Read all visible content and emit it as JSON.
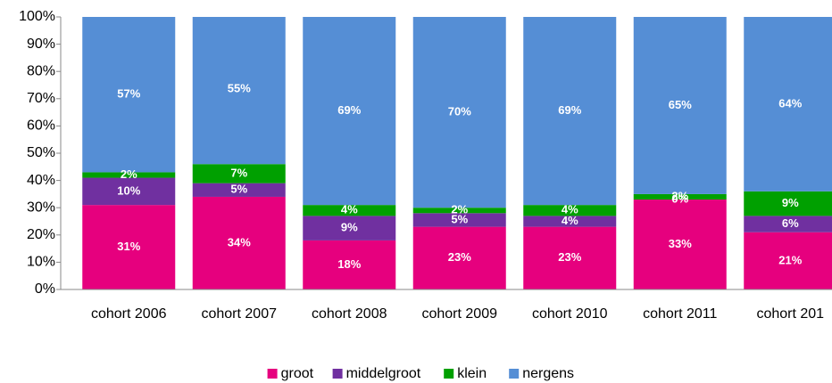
{
  "chart_data": {
    "type": "stacked_bar",
    "categories": [
      "cohort 2006",
      "cohort 2007",
      "cohort 2008",
      "cohort 2009",
      "cohort 2010",
      "cohort 2011",
      "cohort 201"
    ],
    "series": [
      {
        "name": "groot",
        "color": "#e6007e",
        "values": [
          31,
          34,
          18,
          23,
          23,
          33,
          21
        ],
        "value_labels": [
          "31%",
          "34%",
          "18%",
          "23%",
          "23%",
          "33%",
          "21%"
        ]
      },
      {
        "name": "middelgroot",
        "color": "#7030a0",
        "values": [
          10,
          5,
          9,
          5,
          4,
          0,
          6
        ],
        "value_labels": [
          "10%",
          "5%",
          "9%",
          "5%",
          "4%",
          "0%",
          "6%"
        ]
      },
      {
        "name": "klein",
        "color": "#00a000",
        "values": [
          2,
          7,
          4,
          2,
          4,
          2,
          9
        ],
        "value_labels": [
          "2%",
          "7%",
          "4%",
          "2%",
          "4%",
          "2%",
          "9%"
        ]
      },
      {
        "name": "nergens",
        "color": "#558ed5",
        "values": [
          57,
          55,
          69,
          70,
          69,
          65,
          64
        ],
        "value_labels": [
          "57%",
          "55%",
          "69%",
          "70%",
          "69%",
          "65%",
          "64%"
        ]
      }
    ],
    "ylim": [
      0,
      100
    ],
    "yticks": [
      {
        "value": 0,
        "label": "0%"
      },
      {
        "value": 10,
        "label": "10%"
      },
      {
        "value": 20,
        "label": "20%"
      },
      {
        "value": 30,
        "label": "30%"
      },
      {
        "value": 40,
        "label": "40%"
      },
      {
        "value": 50,
        "label": "50%"
      },
      {
        "value": 60,
        "label": "60%"
      },
      {
        "value": 70,
        "label": "70%"
      },
      {
        "value": 80,
        "label": "80%"
      },
      {
        "value": 90,
        "label": "90%"
      },
      {
        "value": 100,
        "label": "100%"
      }
    ],
    "legend": "bottom"
  }
}
